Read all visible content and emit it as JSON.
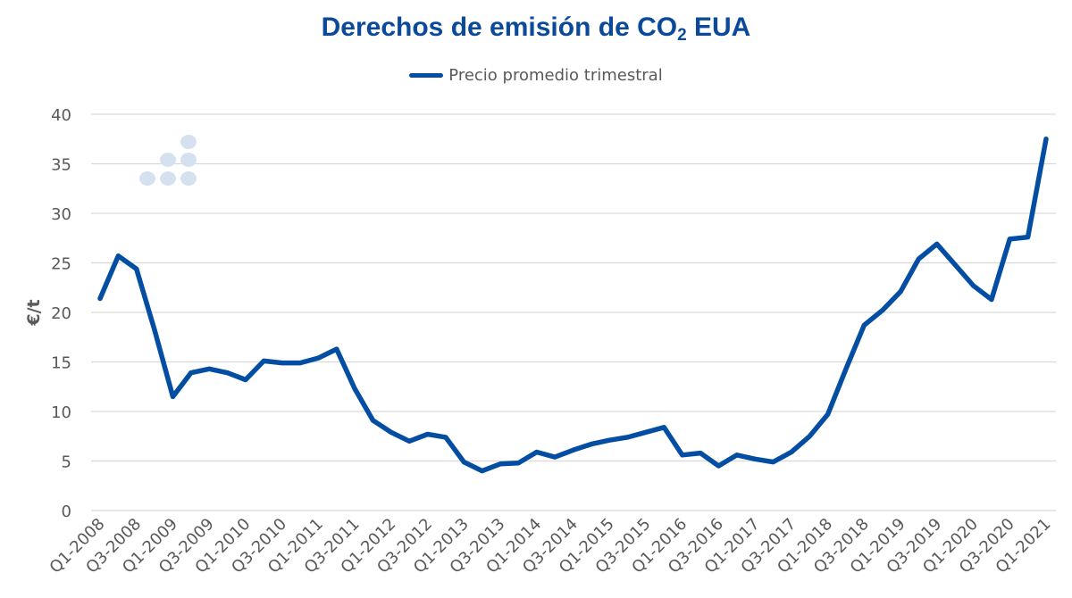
{
  "chart_data": {
    "type": "line",
    "title": "Derechos de emisión de CO",
    "title_subscript": "2",
    "title_suffix": " EUA",
    "ylabel": "€/t",
    "xlabel": "",
    "ylim": [
      0,
      40
    ],
    "yticks": [
      0,
      5,
      10,
      15,
      20,
      25,
      30,
      35,
      40
    ],
    "grid": true,
    "legend_placement": "top-center",
    "x_tick_labels": [
      "Q1-2008",
      "Q3-2008",
      "Q1-2009",
      "Q3-2009",
      "Q1-2010",
      "Q3-2010",
      "Q1-2011",
      "Q3-2011",
      "Q1-2012",
      "Q3-2012",
      "Q1-2013",
      "Q3-2013",
      "Q1-2014",
      "Q3-2014",
      "Q1-2015",
      "Q3-2015",
      "Q1-2016",
      "Q3-2016",
      "Q1-2017",
      "Q3-2017",
      "Q1-2018",
      "Q3-2018",
      "Q1-2019",
      "Q3-2019",
      "Q1-2020",
      "Q3-2020",
      "Q1-2021"
    ],
    "series": [
      {
        "name": "Precio promedio trimestral",
        "color": "#034ea2",
        "values": [
          21.4,
          25.7,
          24.4,
          18.2,
          11.5,
          13.9,
          14.3,
          13.9,
          13.2,
          15.1,
          14.9,
          14.9,
          15.4,
          16.3,
          12.3,
          9.1,
          7.9,
          7.0,
          7.7,
          7.4,
          4.9,
          4.0,
          4.7,
          4.8,
          5.9,
          5.4,
          6.1,
          6.7,
          7.1,
          7.4,
          7.9,
          8.4,
          5.6,
          5.8,
          4.5,
          5.6,
          5.2,
          4.9,
          5.9,
          7.5,
          9.7,
          14.3,
          18.7,
          20.2,
          22.1,
          25.4,
          26.9,
          24.8,
          22.7,
          21.3,
          27.4,
          27.6,
          37.5
        ]
      }
    ]
  }
}
